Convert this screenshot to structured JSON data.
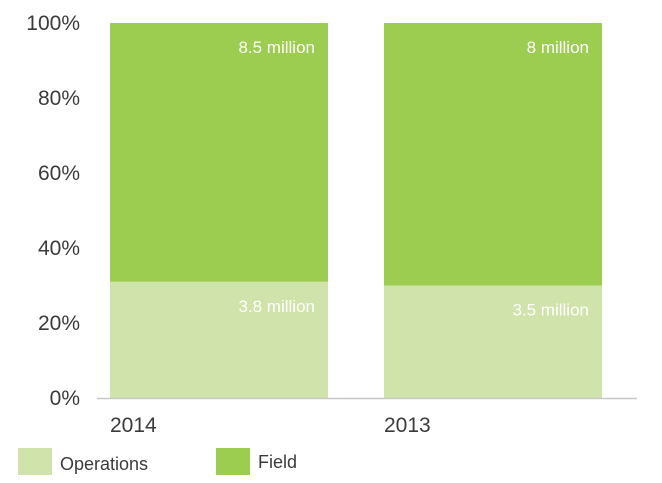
{
  "chart_data": {
    "type": "bar",
    "stacked": true,
    "percent_scale": true,
    "categories": [
      "2014",
      "2013"
    ],
    "series": [
      {
        "name": "Operations",
        "values": [
          31,
          30
        ],
        "labels": [
          "3.8 million",
          "3.5 million"
        ],
        "color": "#cfe3aa"
      },
      {
        "name": "Field",
        "values": [
          69,
          70
        ],
        "labels": [
          "8.5 million",
          "8 million"
        ],
        "color": "#9ccc50"
      }
    ],
    "y_ticks": [
      "0%",
      "20%",
      "40%",
      "60%",
      "80%",
      "100%"
    ],
    "ylim": [
      0,
      100
    ],
    "grid": false,
    "legend_position": "bottom-left"
  }
}
